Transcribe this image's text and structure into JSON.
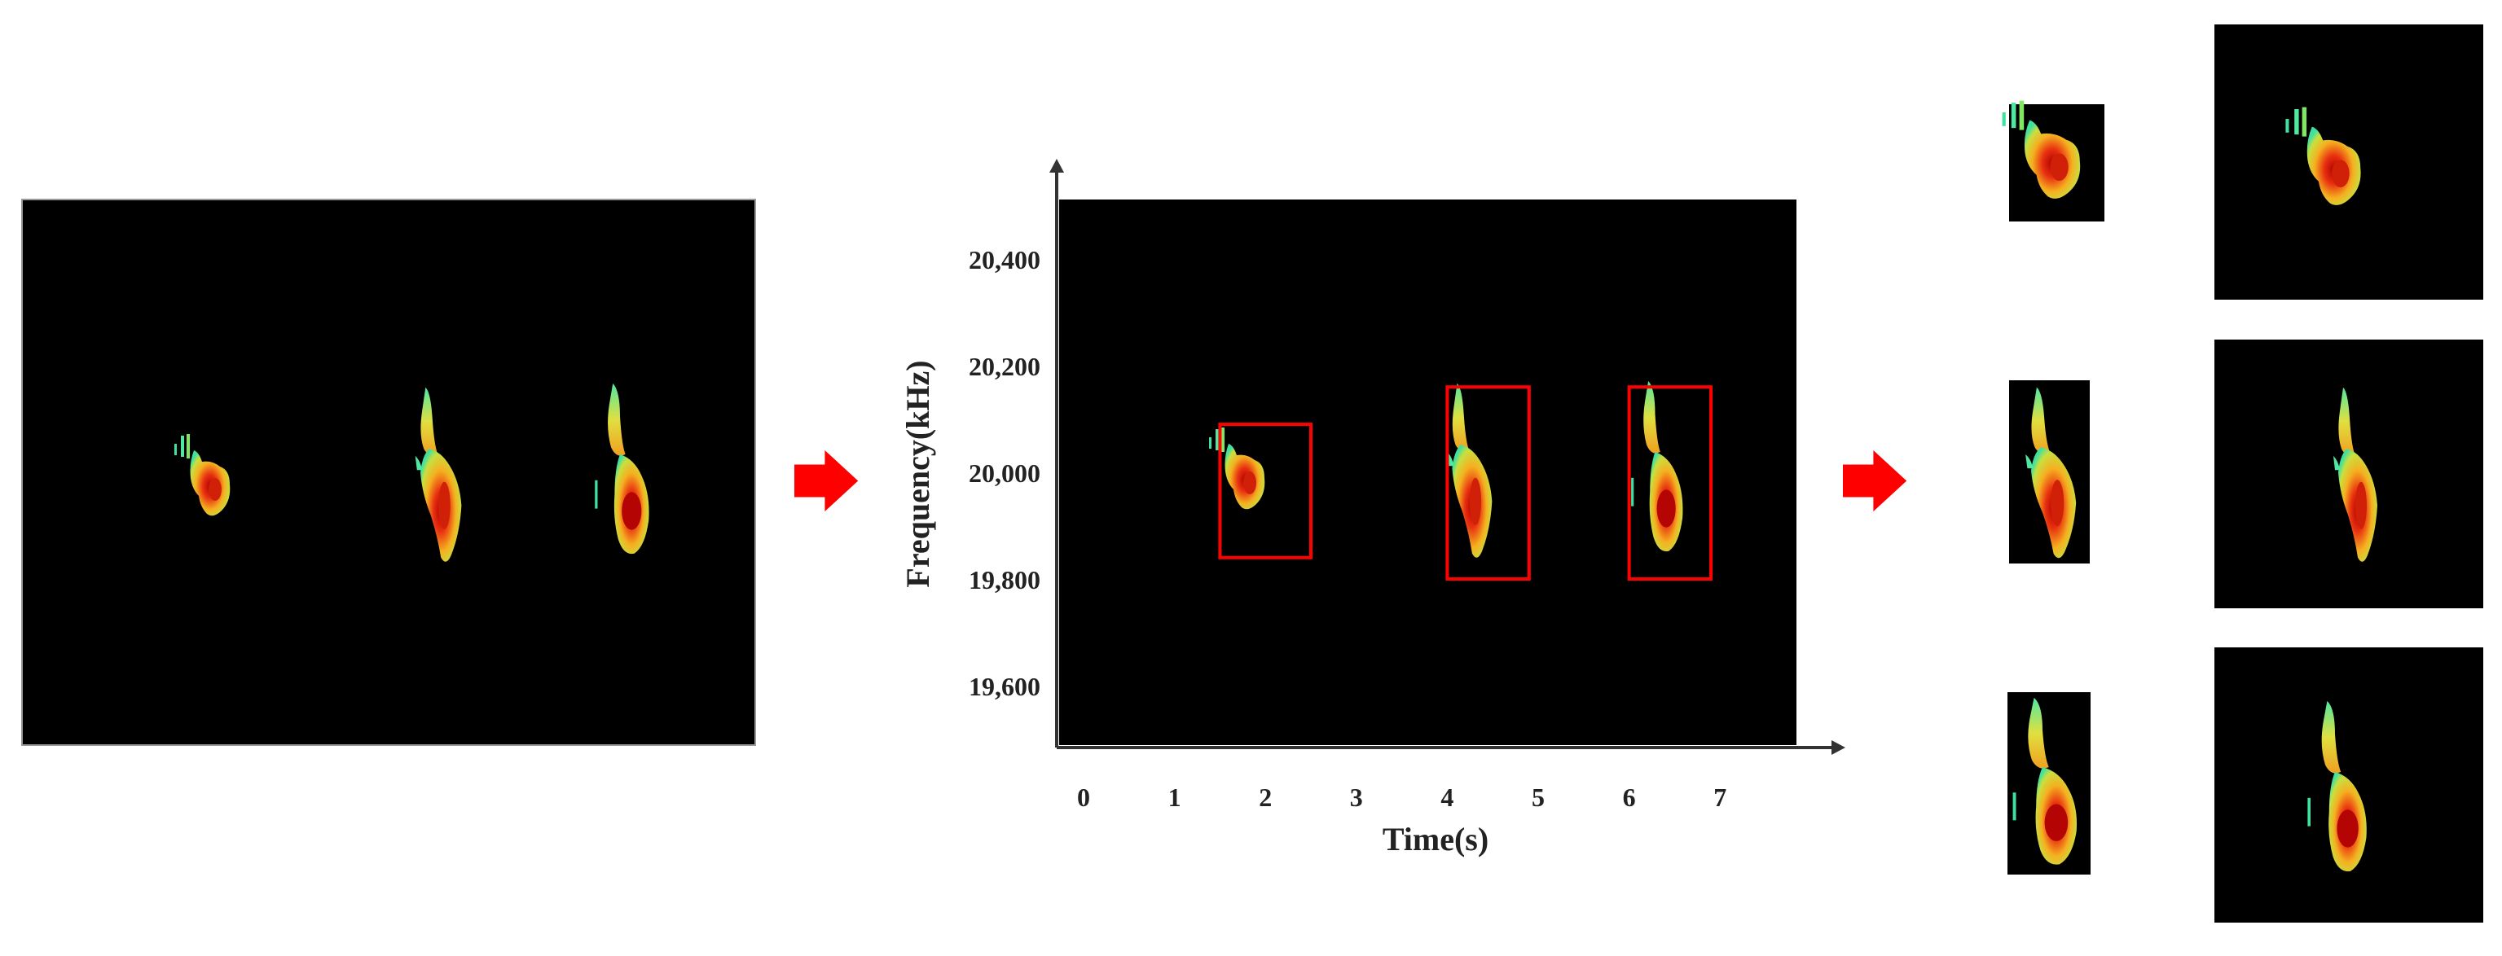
{
  "flow": {
    "arrow_color": "#ff0000"
  },
  "spectrogram_chart": {
    "ylabel": "Frequency(kHz)",
    "xlabel": "Time(s)",
    "y_ticks": [
      "20,400",
      "20,200",
      "20,000",
      "19,800",
      "19,600"
    ],
    "x_ticks": [
      "0",
      "1",
      "2",
      "3",
      "4",
      "5",
      "6",
      "7"
    ],
    "box_color": "#ff0000",
    "background": "#000000",
    "detections": [
      {
        "t_start": 1.5,
        "t_end": 2.5,
        "f_low": 19840,
        "f_high": 20090
      },
      {
        "t_start": 4.0,
        "t_end": 4.9,
        "f_low": 19800,
        "f_high": 20160
      },
      {
        "t_start": 6.0,
        "t_end": 6.9,
        "f_low": 19800,
        "f_high": 20160
      }
    ]
  },
  "outputs": {
    "crops_label": "",
    "resized_label": ""
  }
}
